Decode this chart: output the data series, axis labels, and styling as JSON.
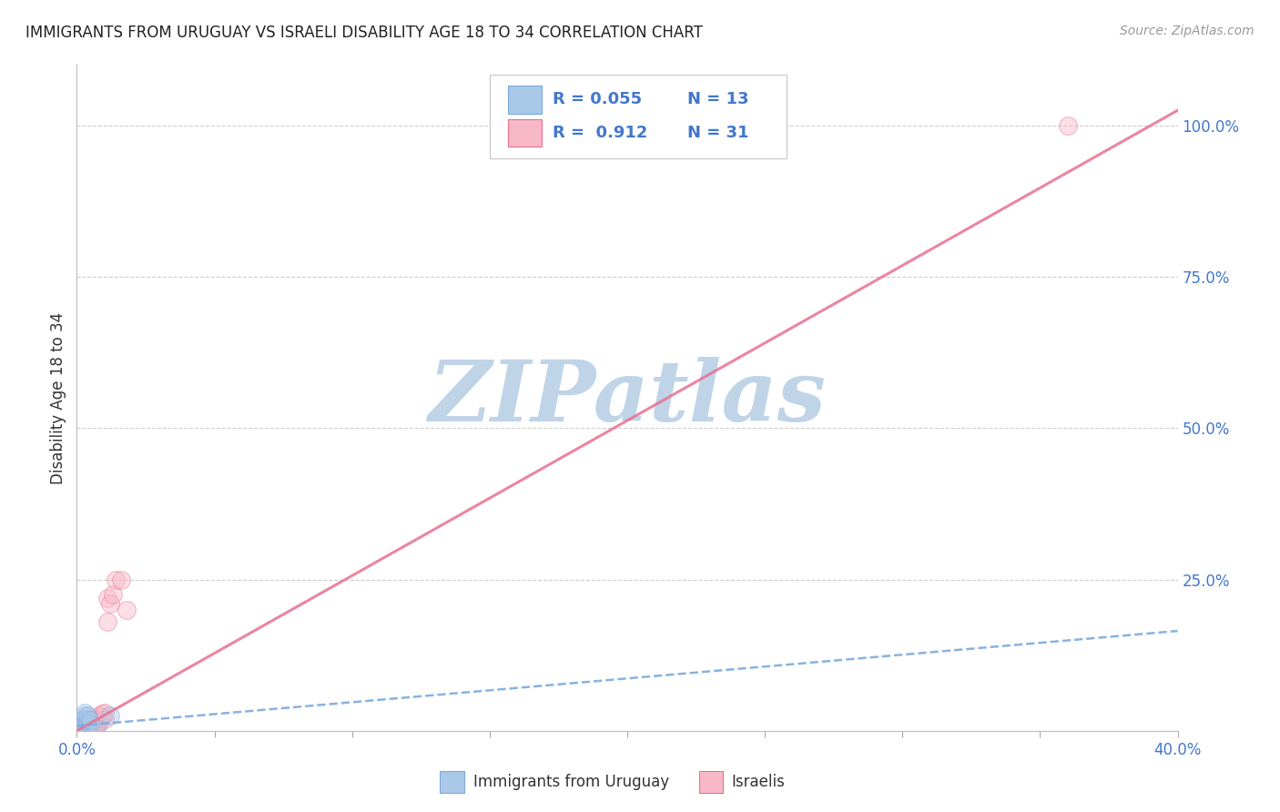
{
  "title": "IMMIGRANTS FROM URUGUAY VS ISRAELI DISABILITY AGE 18 TO 34 CORRELATION CHART",
  "source": "Source: ZipAtlas.com",
  "ylabel": "Disability Age 18 to 34",
  "xlim": [
    0.0,
    0.4
  ],
  "ylim": [
    0.0,
    1.1
  ],
  "xtick_positions": [
    0.0,
    0.05,
    0.1,
    0.15,
    0.2,
    0.25,
    0.3,
    0.35,
    0.4
  ],
  "xticklabels": [
    "0.0%",
    "",
    "",
    "",
    "",
    "",
    "",
    "",
    "40.0%"
  ],
  "ytick_positions": [
    0.0,
    0.25,
    0.5,
    0.75,
    1.0
  ],
  "yticklabels_right": [
    "",
    "25.0%",
    "50.0%",
    "75.0%",
    "100.0%"
  ],
  "grid_color": "#cccccc",
  "watermark": "ZIPatlas",
  "watermark_color": "#c0d4e8",
  "blue_scatter_x": [
    0.001,
    0.002,
    0.002,
    0.003,
    0.003,
    0.003,
    0.004,
    0.004,
    0.004,
    0.005,
    0.005,
    0.012,
    0.007
  ],
  "blue_scatter_y": [
    0.005,
    0.008,
    0.018,
    0.02,
    0.025,
    0.03,
    0.015,
    0.02,
    0.025,
    0.012,
    0.018,
    0.025,
    0.002
  ],
  "pink_scatter_x": [
    0.001,
    0.001,
    0.002,
    0.002,
    0.002,
    0.003,
    0.003,
    0.003,
    0.004,
    0.004,
    0.004,
    0.005,
    0.005,
    0.006,
    0.006,
    0.007,
    0.007,
    0.008,
    0.008,
    0.009,
    0.009,
    0.01,
    0.01,
    0.011,
    0.011,
    0.012,
    0.013,
    0.014,
    0.016,
    0.018,
    0.36
  ],
  "pink_scatter_y": [
    0.003,
    0.005,
    0.002,
    0.005,
    0.008,
    0.005,
    0.01,
    0.015,
    0.008,
    0.012,
    0.002,
    0.01,
    0.015,
    0.018,
    0.005,
    0.008,
    0.02,
    0.015,
    0.025,
    0.022,
    0.028,
    0.02,
    0.03,
    0.18,
    0.22,
    0.21,
    0.225,
    0.25,
    0.25,
    0.2,
    1.0
  ],
  "blue_line_x": [
    0.0,
    0.4
  ],
  "blue_line_y": [
    0.008,
    0.165
  ],
  "pink_line_x": [
    0.0,
    0.4
  ],
  "pink_line_y": [
    0.0,
    1.025
  ],
  "blue_scatter_color": "#aac8e8",
  "blue_scatter_edge": "#7aabdc",
  "pink_scatter_color": "#f8b8c8",
  "pink_scatter_edge": "#e87090",
  "blue_line_color": "#7aabdc",
  "pink_line_color": "#e87090",
  "legend_text_color_dark": "#222222",
  "legend_text_color_blue": "#4477cc",
  "legend_r_blue": "R = 0.055",
  "legend_n_blue": "N = 13",
  "legend_r_pink": "R =  0.912",
  "legend_n_pink": "N = 31",
  "marker_size": 200,
  "marker_alpha": 0.45,
  "figsize": [
    14.06,
    8.92
  ],
  "dpi": 100
}
